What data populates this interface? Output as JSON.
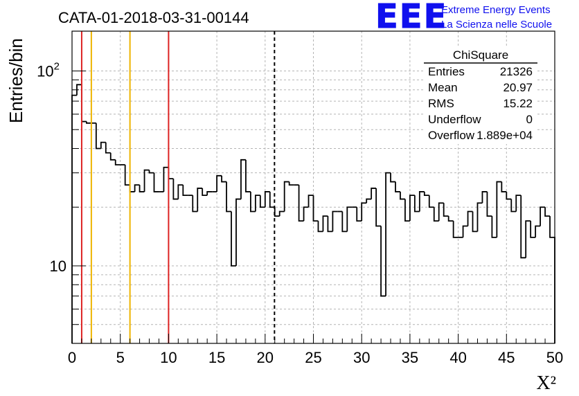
{
  "plot_title": "CATA-01-2018-03-31-00144",
  "logo": {
    "mark": "EEE",
    "line1": "Extreme Energy Events",
    "line2": "La Scienza nelle Scuole",
    "color": "#1010ee"
  },
  "stats_box": {
    "title": "ChiSquare",
    "rows": [
      {
        "label": "Entries",
        "value": "21326"
      },
      {
        "label": "Mean",
        "value": "20.97"
      },
      {
        "label": "RMS",
        "value": "15.22"
      },
      {
        "label": "Underflow",
        "value": "0"
      },
      {
        "label": "Overflow",
        "value": "1.889e+04"
      }
    ]
  },
  "chart_data": {
    "type": "histogram",
    "title": "CATA-01-2018-03-31-00144",
    "xlabel": "X²",
    "ylabel": "Entries/bin",
    "xlim": [
      0,
      50
    ],
    "ylim": [
      4,
      160
    ],
    "y_scale": "log",
    "bin_width": 0.5,
    "x_ticks": [
      "0",
      "5",
      "10",
      "15",
      "20",
      "25",
      "30",
      "35",
      "40",
      "45",
      "50"
    ],
    "y_ticks": [
      {
        "value": 10,
        "label": "10"
      },
      {
        "value": 100,
        "label": "10",
        "exponent": "2"
      }
    ],
    "grid": true,
    "values": [
      75,
      85,
      55,
      54,
      54,
      40,
      43,
      38,
      35,
      33,
      33,
      26,
      24,
      26,
      24,
      31,
      30,
      24,
      24,
      32,
      28,
      22,
      26,
      23,
      23,
      19,
      25,
      23,
      24,
      24,
      29,
      27,
      19,
      10,
      22,
      35,
      24,
      19,
      23,
      20,
      24,
      20,
      18,
      19,
      27,
      26,
      26,
      17,
      20,
      23,
      17,
      15,
      18,
      15,
      19,
      19,
      15,
      20,
      20,
      17,
      21,
      22,
      25,
      16,
      7,
      30,
      27,
      24,
      22,
      17,
      23,
      19,
      24,
      23,
      20,
      17,
      21,
      18,
      17,
      14,
      14,
      16,
      19,
      15,
      21,
      24,
      18,
      14,
      27,
      24,
      22,
      19,
      23,
      11,
      17,
      14,
      16,
      20,
      18,
      14
    ],
    "vertical_lines": [
      {
        "x": 1,
        "color": "#dd2222",
        "style": "solid"
      },
      {
        "x": 2,
        "color": "#eeb400",
        "style": "solid"
      },
      {
        "x": 6,
        "color": "#eeb400",
        "style": "solid"
      },
      {
        "x": 10,
        "color": "#dd2222",
        "style": "solid"
      },
      {
        "x": 20.97,
        "color": "#000000",
        "style": "dashed"
      }
    ]
  }
}
